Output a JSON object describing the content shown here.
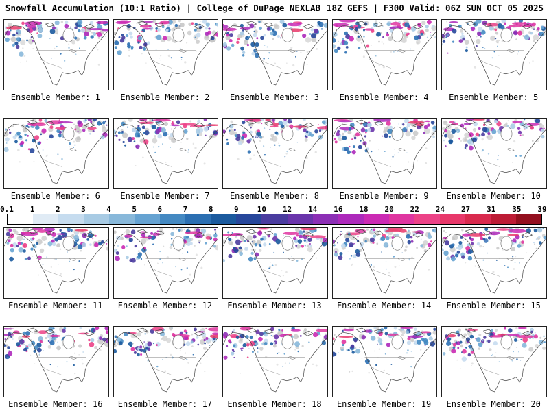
{
  "header": {
    "left": "Snowfall Accumulation (10:1 Ratio) | College of DuPage NEXLAB",
    "right": "18Z GEFS | F300 Valid: 06Z SUN OCT 05 2025"
  },
  "panels": [
    {
      "label": "Ensemble Member: 1"
    },
    {
      "label": "Ensemble Member: 2"
    },
    {
      "label": "Ensemble Member: 3"
    },
    {
      "label": "Ensemble Member: 4"
    },
    {
      "label": "Ensemble Member: 5"
    },
    {
      "label": "Ensemble Member: 6"
    },
    {
      "label": "Ensemble Member: 7"
    },
    {
      "label": "Ensemble Member: 8"
    },
    {
      "label": "Ensemble Member: 9"
    },
    {
      "label": "Ensemble Member: 10"
    },
    {
      "label": "Ensemble Member: 11"
    },
    {
      "label": "Ensemble Member: 12"
    },
    {
      "label": "Ensemble Member: 13"
    },
    {
      "label": "Ensemble Member: 14"
    },
    {
      "label": "Ensemble Member: 15"
    },
    {
      "label": "Ensemble Member: 16"
    },
    {
      "label": "Ensemble Member: 17"
    },
    {
      "label": "Ensemble Member: 18"
    },
    {
      "label": "Ensemble Member: 19"
    },
    {
      "label": "Ensemble Member: 20"
    }
  ],
  "colorbar": {
    "ticks": [
      "0.1",
      "1",
      "2",
      "3",
      "4",
      "5",
      "6",
      "7",
      "8",
      "9",
      "10",
      "12",
      "14",
      "16",
      "18",
      "20",
      "22",
      "24",
      "27",
      "31",
      "35",
      "39"
    ],
    "colors": [
      "#ffffff",
      "#e0ebf5",
      "#c6dcef",
      "#a8cbe4",
      "#88b8da",
      "#66a3d2",
      "#4489c2",
      "#2b6fb2",
      "#1b5a9e",
      "#27479b",
      "#4a3c9f",
      "#6a35ab",
      "#8c2fb5",
      "#ad29bb",
      "#cb2ab4",
      "#df35a0",
      "#ec4287",
      "#e8386a",
      "#d92a4e",
      "#bd1c35",
      "#93101f"
    ]
  }
}
